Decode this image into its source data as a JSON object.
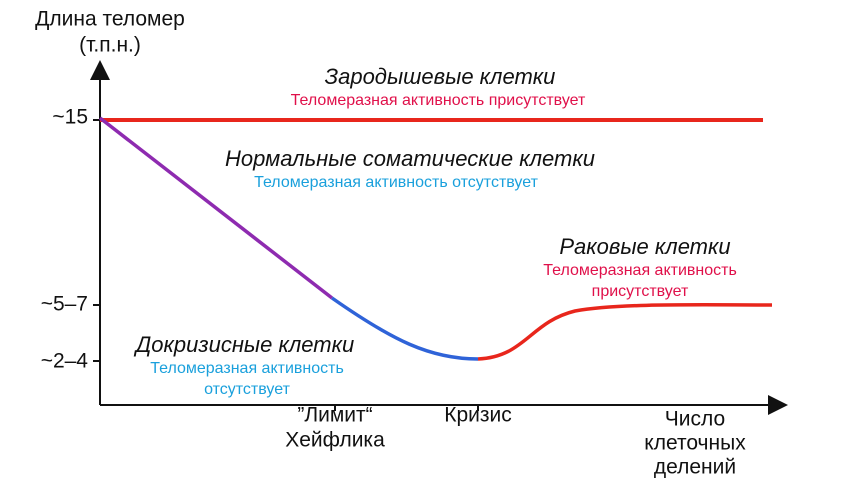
{
  "y_axis": {
    "title": [
      "Длина теломер",
      "(т.п.н.)"
    ],
    "ticks": [
      "~15",
      "~5–7",
      "~2–4"
    ]
  },
  "x_axis": {
    "title": [
      "Число",
      "клеточных",
      "делений"
    ],
    "markers": [
      [
        "”Лимит“",
        "Хейфлика"
      ],
      [
        "Кризис"
      ]
    ]
  },
  "curves": [
    {
      "name": "Зародышевые клетки",
      "note": [
        "Теломеразная активность присутствует"
      ]
    },
    {
      "name": "Нормальные соматические клетки",
      "note": [
        "Теломеразная активность отсутствует"
      ]
    },
    {
      "name": "Раковые клетки",
      "note": [
        "Теломеразная активность",
        "присутствует"
      ]
    },
    {
      "name": "Докризисные клетки",
      "note": [
        "Теломеразная активность",
        "отсутствует"
      ]
    }
  ]
}
